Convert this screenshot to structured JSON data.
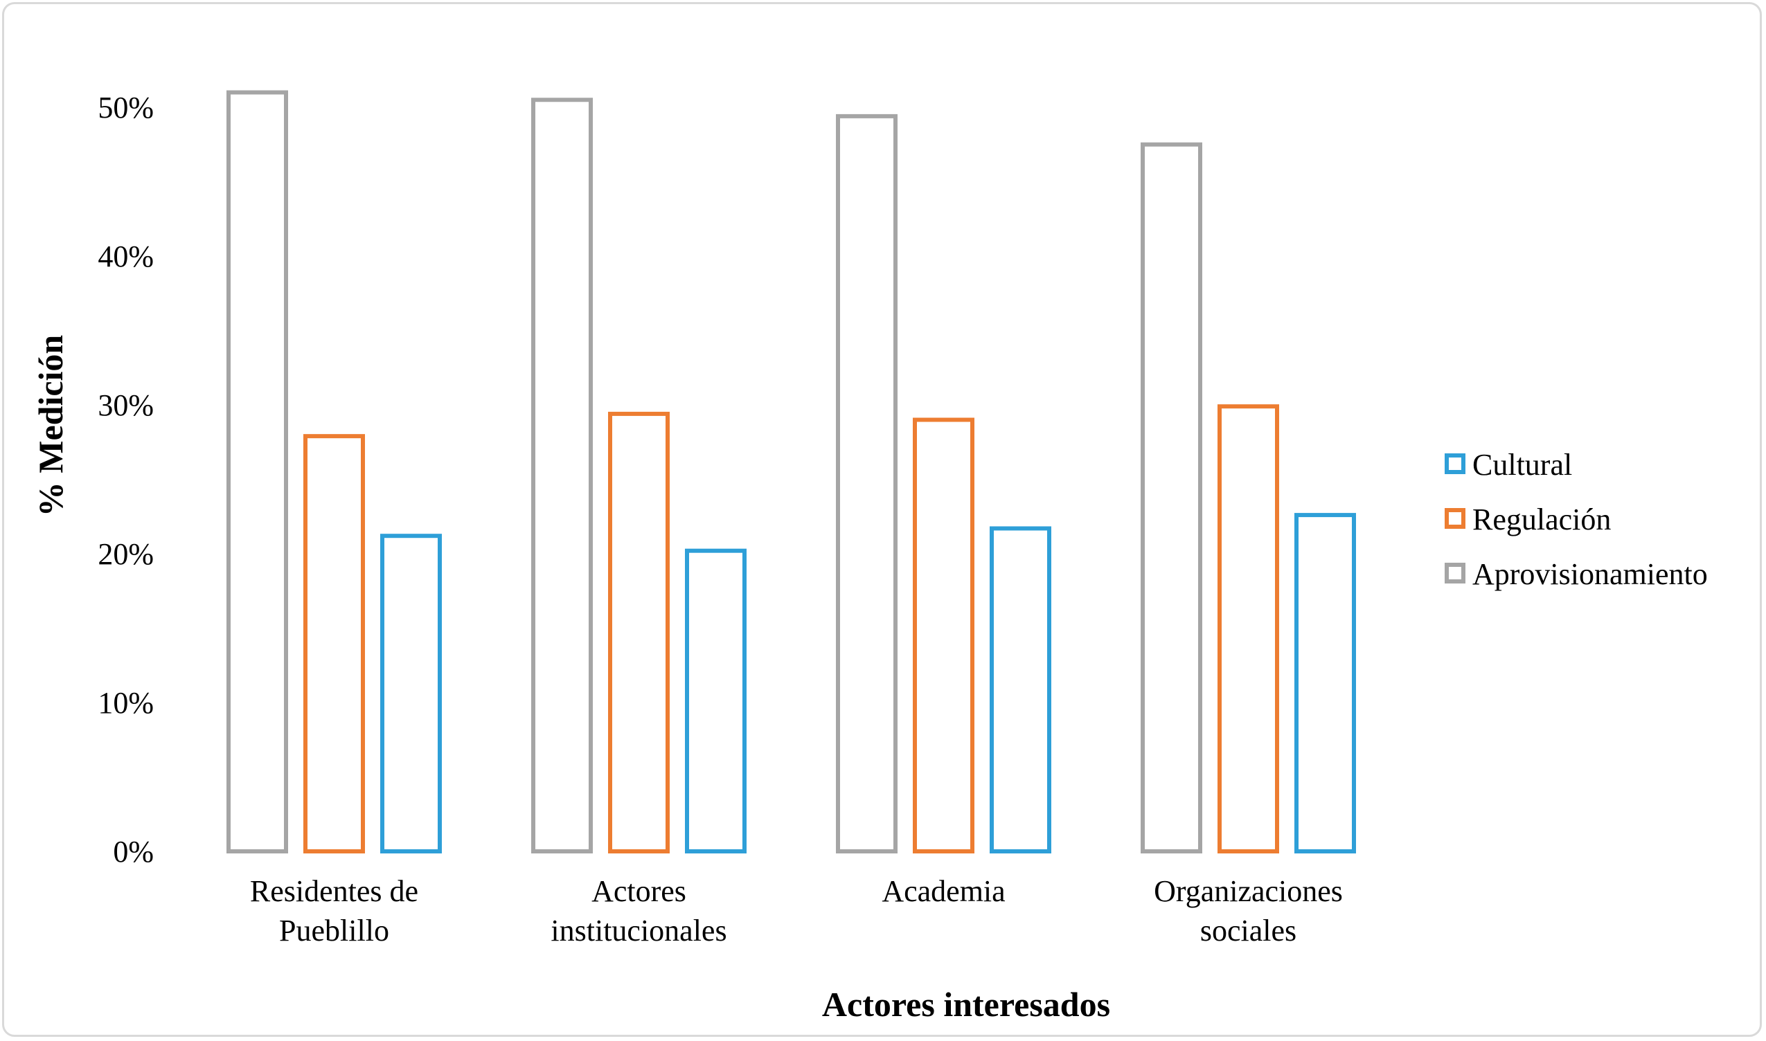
{
  "chart_data": {
    "type": "bar",
    "title": "",
    "xlabel": "Actores interesados",
    "ylabel": "% Medición",
    "ylim": [
      0,
      0.5
    ],
    "yticks": [
      "0%",
      "10%",
      "20%",
      "30%",
      "40%",
      "50%"
    ],
    "grid": false,
    "legend_position": "right",
    "categories": [
      [
        "Residentes de",
        "Pueblillo"
      ],
      [
        "Actores",
        "institucionales"
      ],
      [
        "Academia"
      ],
      [
        "Organizaciones",
        "sociales"
      ]
    ],
    "series": [
      {
        "name": "Aprovisionamiento",
        "color": "#a5a5a5",
        "values": [
          0.51,
          0.505,
          0.494,
          0.475
        ]
      },
      {
        "name": "Regulación",
        "color": "#ed7d31",
        "values": [
          0.279,
          0.294,
          0.29,
          0.299
        ]
      },
      {
        "name": "Cultural",
        "color": "#2e9fd8",
        "values": [
          0.212,
          0.202,
          0.217,
          0.226
        ]
      }
    ],
    "legend_order": [
      "Cultural",
      "Regulación",
      "Aprovisionamiento"
    ]
  }
}
